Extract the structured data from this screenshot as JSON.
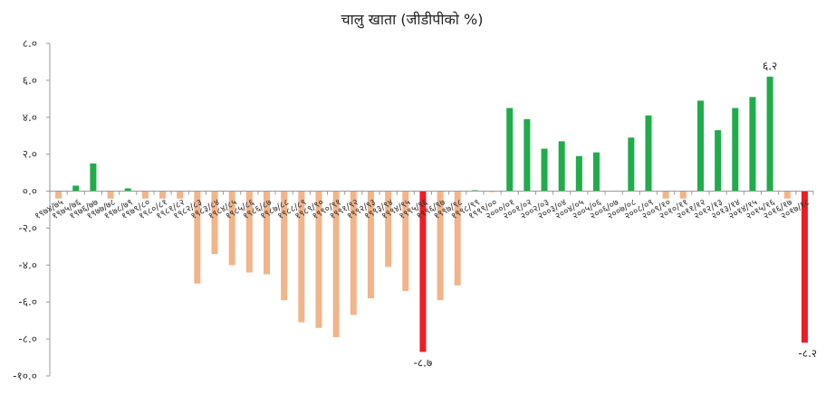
{
  "chart_data": {
    "type": "bar",
    "title": "चालु खाता (जीडीपीको %)",
    "ylim": [
      -10,
      8
    ],
    "yticks": [
      {
        "value": 8,
        "label": "८.०"
      },
      {
        "value": 6,
        "label": "६.०"
      },
      {
        "value": 4,
        "label": "४.०"
      },
      {
        "value": 2,
        "label": "२.०"
      },
      {
        "value": 0,
        "label": "०.०"
      },
      {
        "value": -2,
        "label": "-२.०"
      },
      {
        "value": -4,
        "label": "-४.०"
      },
      {
        "value": -6,
        "label": "-६.०"
      },
      {
        "value": -8,
        "label": "-८.०"
      },
      {
        "value": -10,
        "label": "-१०.०"
      }
    ],
    "categories": [
      "१९७४/७५",
      "१९७५/७६",
      "१९७६/७७",
      "१९७७/७८",
      "१९७८/७९",
      "१९७९/८०",
      "१९८०/८१",
      "१९८१/८२",
      "१९८२/८३",
      "१९८३/८४",
      "१९८४/८५",
      "१९८५/८६",
      "१९८६/८७",
      "१९८७/८८",
      "१९८८/८९",
      "१९८९/९०",
      "१९९०/९१",
      "१९९१/९२",
      "१९९२/९३",
      "१९९३/९४",
      "१९९४/९५",
      "१९९५/९६",
      "१९९६/९७",
      "१९९७/९८",
      "१९९८/९९",
      "१९९९/००",
      "२०००/०१",
      "२००१/०२",
      "२००२/०३",
      "२००३/०४",
      "२००४/०५",
      "२००५/०६",
      "२००६/०७",
      "२००७/०८",
      "२००८/०९",
      "२००९/१०",
      "२०१०/११",
      "२०११/१२",
      "२०१२/१३",
      "२०१३/१४",
      "२०१४/१५",
      "२०१५/१६",
      "२०१६/१७",
      "२०१७/१८"
    ],
    "values": [
      -0.4,
      0.3,
      1.5,
      -0.4,
      0.15,
      -0.4,
      -0.4,
      -0.4,
      -5.0,
      -3.4,
      -4.0,
      -4.4,
      -4.5,
      -5.9,
      -7.1,
      -7.4,
      -7.9,
      -6.7,
      -5.8,
      -4.1,
      -5.4,
      -8.7,
      -5.9,
      -5.1,
      0.05,
      -0.05,
      4.5,
      3.9,
      2.3,
      2.7,
      1.9,
      2.1,
      0.0,
      2.9,
      4.1,
      -0.4,
      -0.4,
      4.9,
      3.3,
      4.5,
      5.1,
      6.2,
      -0.4,
      -8.2
    ],
    "data_labels": [
      {
        "index": 21,
        "text": "-८.७"
      },
      {
        "index": 41,
        "text": "६.२"
      },
      {
        "index": 43,
        "text": "-८.२"
      }
    ],
    "colors": {
      "positive": "#1fac4b",
      "negative": "#f2b48a",
      "highlight": "#ee1c25",
      "axis": "#9a9a9a"
    },
    "highlight_indices": [
      21,
      43
    ],
    "grid": false,
    "legend": "none"
  }
}
